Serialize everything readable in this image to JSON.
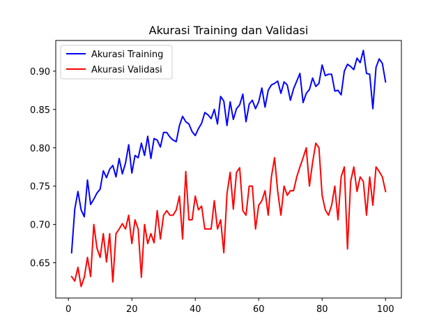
{
  "chart_data": {
    "type": "line",
    "title": "Akurasi Training dan Validasi",
    "xlabel": "",
    "ylabel": "",
    "xlim": [
      -4,
      105
    ],
    "ylim": [
      0.604,
      0.94
    ],
    "x_ticks": [
      0,
      20,
      40,
      60,
      80,
      100
    ],
    "y_ticks": [
      0.65,
      0.7,
      0.75,
      0.8,
      0.85,
      0.9
    ],
    "y_tick_labels": [
      "0.65",
      "0.70",
      "0.75",
      "0.80",
      "0.85",
      "0.90"
    ],
    "grid": false,
    "legend_position": "top-left",
    "x": [
      1,
      2,
      3,
      4,
      5,
      6,
      7,
      8,
      9,
      10,
      11,
      12,
      13,
      14,
      15,
      16,
      17,
      18,
      19,
      20,
      21,
      22,
      23,
      24,
      25,
      26,
      27,
      28,
      29,
      30,
      31,
      32,
      33,
      34,
      35,
      36,
      37,
      38,
      39,
      40,
      41,
      42,
      43,
      44,
      45,
      46,
      47,
      48,
      49,
      50,
      51,
      52,
      53,
      54,
      55,
      56,
      57,
      58,
      59,
      60,
      61,
      62,
      63,
      64,
      65,
      66,
      67,
      68,
      69,
      70,
      71,
      72,
      73,
      74,
      75,
      76,
      77,
      78,
      79,
      80,
      81,
      82,
      83,
      84,
      85,
      86,
      87,
      88,
      89,
      90,
      91,
      92,
      93,
      94,
      95,
      96,
      97,
      98,
      99,
      100
    ],
    "series": [
      {
        "name": "Akurasi Training",
        "color": "#0000ff",
        "values": [
          0.663,
          0.72,
          0.743,
          0.719,
          0.71,
          0.758,
          0.726,
          0.733,
          0.741,
          0.746,
          0.77,
          0.761,
          0.772,
          0.777,
          0.762,
          0.786,
          0.766,
          0.78,
          0.804,
          0.767,
          0.79,
          0.787,
          0.806,
          0.79,
          0.815,
          0.786,
          0.812,
          0.81,
          0.801,
          0.82,
          0.82,
          0.814,
          0.81,
          0.808,
          0.829,
          0.841,
          0.834,
          0.831,
          0.821,
          0.816,
          0.825,
          0.832,
          0.846,
          0.843,
          0.838,
          0.85,
          0.831,
          0.867,
          0.861,
          0.829,
          0.86,
          0.837,
          0.851,
          0.856,
          0.87,
          0.834,
          0.857,
          0.862,
          0.851,
          0.86,
          0.878,
          0.853,
          0.875,
          0.882,
          0.884,
          0.887,
          0.871,
          0.886,
          0.882,
          0.862,
          0.877,
          0.887,
          0.897,
          0.859,
          0.871,
          0.876,
          0.891,
          0.88,
          0.884,
          0.908,
          0.894,
          0.896,
          0.896,
          0.874,
          0.875,
          0.869,
          0.9,
          0.909,
          0.906,
          0.902,
          0.917,
          0.911,
          0.927,
          0.897,
          0.896,
          0.851,
          0.905,
          0.916,
          0.91,
          0.886
        ]
      },
      {
        "name": "Akurasi Validasi",
        "color": "#ff0000",
        "values": [
          0.632,
          0.626,
          0.644,
          0.619,
          0.631,
          0.657,
          0.632,
          0.7,
          0.669,
          0.657,
          0.688,
          0.651,
          0.688,
          0.625,
          0.688,
          0.694,
          0.701,
          0.694,
          0.712,
          0.675,
          0.706,
          0.694,
          0.631,
          0.7,
          0.675,
          0.688,
          0.676,
          0.718,
          0.681,
          0.712,
          0.718,
          0.712,
          0.712,
          0.719,
          0.737,
          0.681,
          0.769,
          0.706,
          0.706,
          0.737,
          0.719,
          0.724,
          0.694,
          0.694,
          0.694,
          0.731,
          0.694,
          0.706,
          0.663,
          0.74,
          0.768,
          0.72,
          0.768,
          0.774,
          0.718,
          0.712,
          0.75,
          0.75,
          0.694,
          0.725,
          0.731,
          0.744,
          0.712,
          0.762,
          0.787,
          0.743,
          0.712,
          0.75,
          0.738,
          0.744,
          0.744,
          0.762,
          0.775,
          0.787,
          0.8,
          0.75,
          0.781,
          0.806,
          0.8,
          0.738,
          0.719,
          0.712,
          0.725,
          0.75,
          0.706,
          0.762,
          0.775,
          0.668,
          0.756,
          0.775,
          0.743,
          0.762,
          0.756,
          0.712,
          0.762,
          0.725,
          0.775,
          0.769,
          0.762,
          0.743
        ]
      }
    ]
  }
}
